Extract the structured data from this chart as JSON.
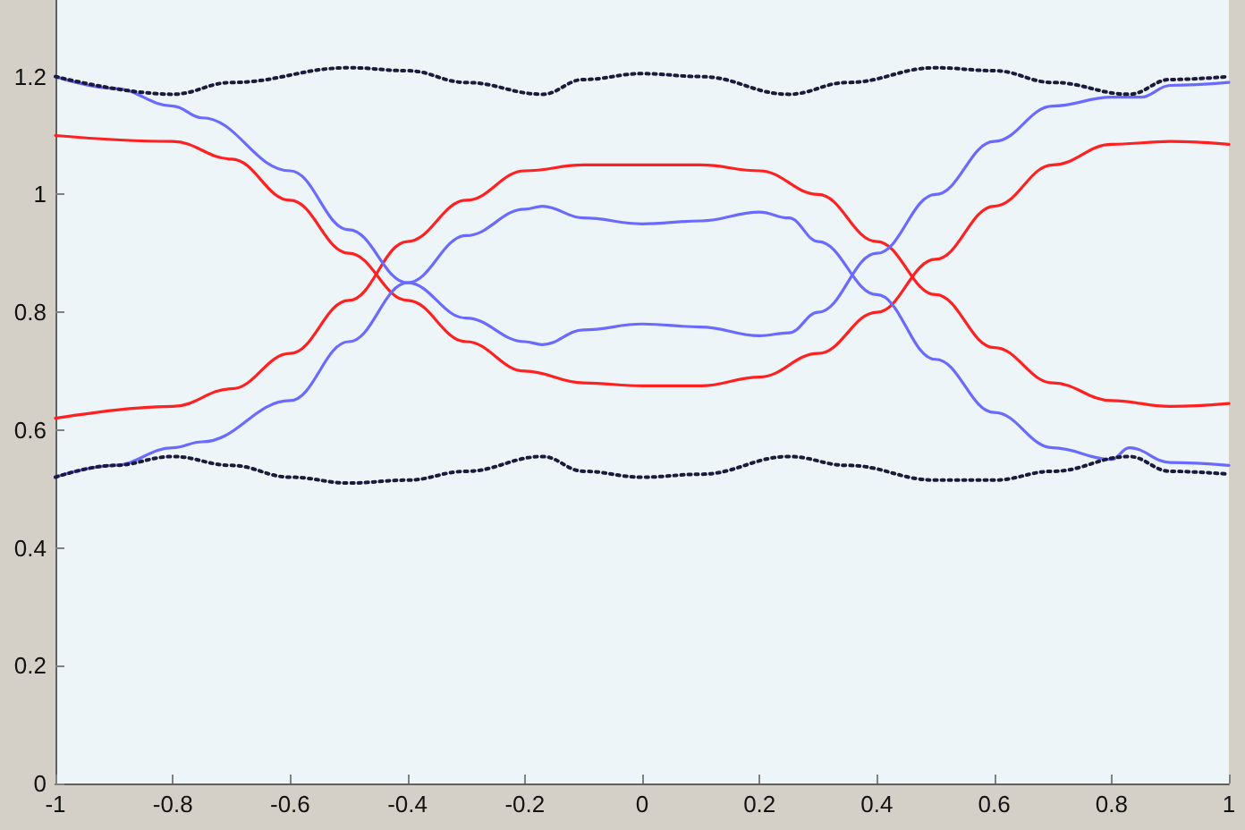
{
  "chart_data": {
    "type": "line",
    "xlim": [
      -1,
      1
    ],
    "xticks": [
      -1,
      -0.8,
      -0.6,
      -0.4,
      -0.2,
      0,
      0.2,
      0.4,
      0.6,
      0.8,
      1
    ],
    "ylim": [
      0,
      1.33
    ],
    "yticks": [
      0,
      0.2,
      0.4,
      0.6,
      0.8,
      1,
      1.2
    ],
    "marker": "none",
    "series": [
      {
        "color": "#ff2020",
        "line_style": "solid",
        "x": [
          -1,
          -0.8,
          -0.7,
          -0.6,
          -0.5,
          -0.4,
          -0.3,
          -0.2,
          -0.1,
          0,
          0.1,
          0.2,
          0.3,
          0.4,
          0.5,
          0.6,
          0.7,
          0.8,
          0.9,
          1
        ],
        "values": [
          1.1,
          1.09,
          1.06,
          0.99,
          0.9,
          0.82,
          0.75,
          0.7,
          0.68,
          0.675,
          0.675,
          0.69,
          0.73,
          0.8,
          0.89,
          0.98,
          1.05,
          1.085,
          1.09,
          1.085
        ]
      },
      {
        "color": "#ff2020",
        "line_style": "solid",
        "x": [
          -1,
          -0.8,
          -0.7,
          -0.6,
          -0.5,
          -0.4,
          -0.3,
          -0.2,
          -0.1,
          0,
          0.1,
          0.2,
          0.3,
          0.4,
          0.5,
          0.6,
          0.7,
          0.8,
          0.9,
          1
        ],
        "values": [
          0.62,
          0.64,
          0.67,
          0.73,
          0.82,
          0.92,
          0.99,
          1.04,
          1.05,
          1.05,
          1.05,
          1.04,
          1.0,
          0.92,
          0.83,
          0.74,
          0.68,
          0.65,
          0.64,
          0.645
        ]
      },
      {
        "color": "#6a6aff",
        "line_style": "solid",
        "x": [
          -1,
          -0.9,
          -0.8,
          -0.75,
          -0.6,
          -0.5,
          -0.4,
          -0.3,
          -0.2,
          -0.17,
          -0.1,
          0,
          0.1,
          0.2,
          0.25,
          0.3,
          0.4,
          0.5,
          0.6,
          0.7,
          0.8,
          0.85,
          0.9,
          1
        ],
        "values": [
          1.2,
          1.18,
          1.15,
          1.13,
          1.04,
          0.94,
          0.85,
          0.79,
          0.75,
          0.745,
          0.77,
          0.78,
          0.775,
          0.76,
          0.765,
          0.8,
          0.9,
          1.0,
          1.09,
          1.15,
          1.165,
          1.165,
          1.185,
          1.19
        ]
      },
      {
        "color": "#6a6aff",
        "line_style": "solid",
        "x": [
          -1,
          -0.9,
          -0.8,
          -0.75,
          -0.6,
          -0.5,
          -0.4,
          -0.3,
          -0.2,
          -0.17,
          -0.1,
          0,
          0.1,
          0.2,
          0.25,
          0.3,
          0.4,
          0.5,
          0.6,
          0.7,
          0.8,
          0.83,
          0.9,
          1
        ],
        "values": [
          0.52,
          0.54,
          0.57,
          0.58,
          0.65,
          0.75,
          0.85,
          0.93,
          0.975,
          0.98,
          0.96,
          0.95,
          0.955,
          0.97,
          0.96,
          0.92,
          0.83,
          0.72,
          0.63,
          0.57,
          0.55,
          0.57,
          0.545,
          0.54
        ]
      },
      {
        "color": "#1a1a3a",
        "line_style": "dotted",
        "x": [
          -1,
          -0.8,
          -0.7,
          -0.5,
          -0.4,
          -0.3,
          -0.17,
          -0.1,
          0,
          0.1,
          0.25,
          0.35,
          0.5,
          0.6,
          0.7,
          0.83,
          0.9,
          1
        ],
        "values": [
          1.2,
          1.17,
          1.19,
          1.215,
          1.21,
          1.19,
          1.17,
          1.195,
          1.205,
          1.2,
          1.17,
          1.19,
          1.215,
          1.21,
          1.19,
          1.17,
          1.195,
          1.2
        ]
      },
      {
        "color": "#1a1a3a",
        "line_style": "dotted",
        "x": [
          -1,
          -0.9,
          -0.8,
          -0.7,
          -0.6,
          -0.5,
          -0.4,
          -0.3,
          -0.17,
          -0.1,
          0,
          0.1,
          0.25,
          0.35,
          0.5,
          0.6,
          0.7,
          0.83,
          0.9,
          1
        ],
        "values": [
          0.52,
          0.54,
          0.555,
          0.54,
          0.52,
          0.51,
          0.515,
          0.53,
          0.555,
          0.53,
          0.52,
          0.525,
          0.555,
          0.54,
          0.515,
          0.515,
          0.53,
          0.555,
          0.53,
          0.525
        ]
      }
    ]
  }
}
